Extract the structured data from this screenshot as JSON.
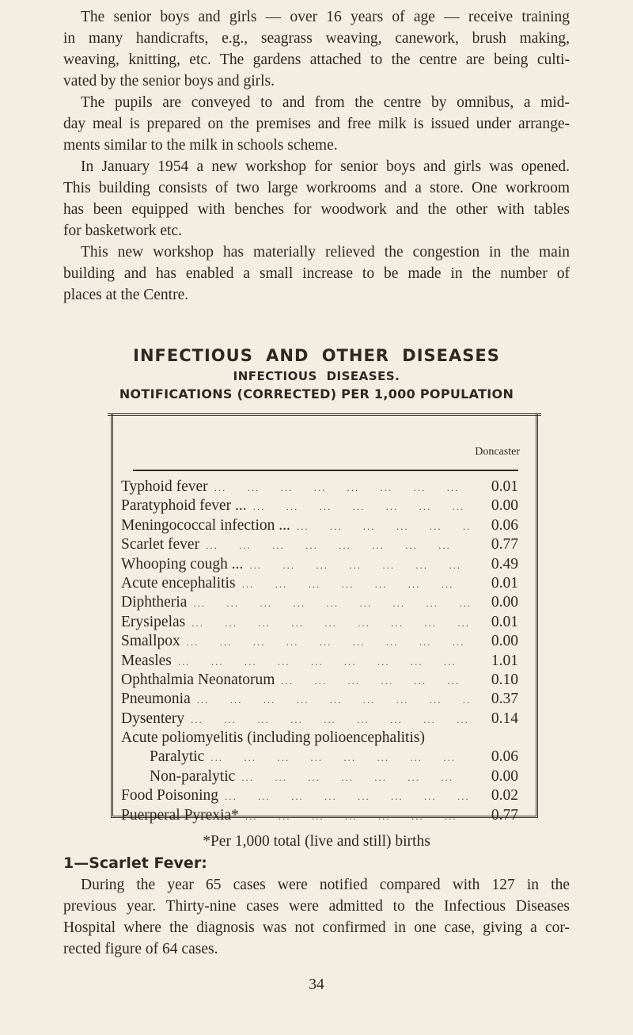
{
  "intro_paragraphs": [
    {
      "lines": [
        "The senior boys and girls — over 16 years of age — receive training",
        "in many handicrafts, e.g., seagrass weaving, canework, brush making,",
        "weaving, knitting, etc. The gardens attached to the centre are being culti-",
        "vated by the senior boys and girls."
      ]
    },
    {
      "lines": [
        "The pupils are conveyed to and from the centre by omnibus, a mid-",
        "day meal is prepared on the premises and free milk is issued under arrange-",
        "ments similar to the milk in schools scheme."
      ]
    },
    {
      "lines": [
        "In January 1954 a new workshop for senior boys and girls was opened.",
        "This building consists of two large workrooms and a store. One workroom",
        "has been equipped with benches for woodwork and the other with tables",
        "for basketwork etc."
      ]
    },
    {
      "lines": [
        "This new workshop has materially relieved the congestion in the main",
        "building and has enabled a small increase to be made in the number of",
        "places at the Centre."
      ]
    }
  ],
  "heading": "INFECTIOUS AND OTHER DISEASES",
  "subheading": "INFECTIOUS DISEASES.",
  "table_title": "NOTIFICATIONS (CORRECTED) PER 1,000 POPULATION",
  "table": {
    "column_header": "Doncaster",
    "rows": [
      {
        "label": "Typhoid fever",
        "value": "0.01"
      },
      {
        "label": "Paratyphoid fever ...",
        "value": "0.00"
      },
      {
        "label": "Meningococcal infection ...",
        "value": "0.06"
      },
      {
        "label": "Scarlet fever",
        "value": "0.77"
      },
      {
        "label": "Whooping cough ...",
        "value": "0.49"
      },
      {
        "label": "Acute encephalitis",
        "value": "0.01"
      },
      {
        "label": "Diphtheria",
        "value": "0.00"
      },
      {
        "label": "Erysipelas",
        "value": "0.01"
      },
      {
        "label": "Smallpox",
        "value": "0.00"
      },
      {
        "label": "Measles",
        "value": "1.01"
      },
      {
        "label": "Ophthalmia Neonatorum",
        "value": "0.10"
      },
      {
        "label": "Pneumonia",
        "value": "0.37"
      },
      {
        "label": "Dysentery",
        "value": "0.14"
      },
      {
        "label": "Acute poliomyelitis (including polioencephalitis)",
        "value": ""
      },
      {
        "label": "Paralytic",
        "value": "0.06",
        "sub": true
      },
      {
        "label": "Non-paralytic",
        "value": "0.00",
        "sub": true
      },
      {
        "label": "Food Poisoning",
        "value": "0.02"
      },
      {
        "label": "Puerperal Pyrexia*",
        "value": "0.77"
      }
    ]
  },
  "footnote": "*Per 1,000 total (live and still) births",
  "section_heading": "1—Scarlet Fever:",
  "section_paragraph": {
    "lines": [
      "During the year 65 cases were notified compared with 127 in the",
      "previous year. Thirty-nine cases were admitted to the Infectious Diseases",
      "Hospital where the diagnosis was not confirmed in one case, giving a cor-",
      "rected figure of 64 cases."
    ]
  },
  "page_number": "34"
}
